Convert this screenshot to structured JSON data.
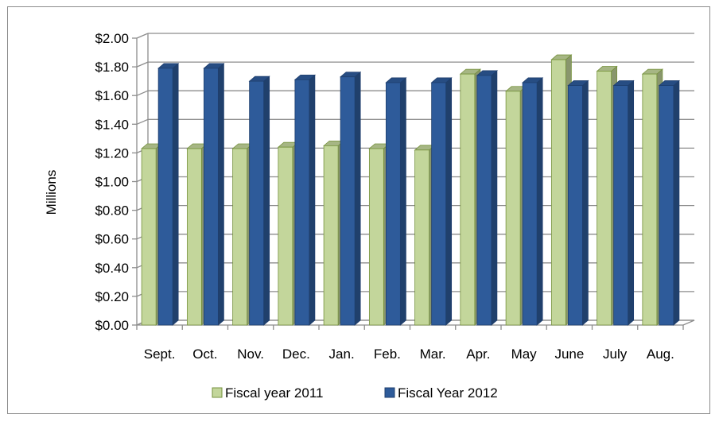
{
  "chart_data": {
    "type": "bar",
    "title": "",
    "xlabel": "",
    "ylabel": "Millions",
    "ylim": [
      0,
      2
    ],
    "y_ticks": [
      0,
      0.2,
      0.4,
      0.6,
      0.8,
      1.0,
      1.2,
      1.4,
      1.6,
      1.8,
      2.0
    ],
    "y_tick_labels": [
      "$0.00",
      "$0.20",
      "$0.40",
      "$0.60",
      "$0.80",
      "$1.00",
      "$1.20",
      "$1.40",
      "$1.60",
      "$1.80",
      "$2.00"
    ],
    "grid": true,
    "legend_position": "bottom",
    "style": "3d-clustered-column",
    "categories": [
      "Sept.",
      "Oct.",
      "Nov.",
      "Dec.",
      "Jan.",
      "Feb.",
      "Mar.",
      "Apr.",
      "May",
      "June",
      "July",
      "Aug."
    ],
    "series": [
      {
        "name": "Fiscal year 2011",
        "color": "#c3d69b",
        "values": [
          1.23,
          1.23,
          1.23,
          1.24,
          1.25,
          1.23,
          1.22,
          1.75,
          1.63,
          1.85,
          1.77,
          1.75
        ]
      },
      {
        "name": "Fiscal Year 2012",
        "color": "#2e5b9a",
        "values": [
          1.79,
          1.79,
          1.7,
          1.71,
          1.73,
          1.69,
          1.69,
          1.74,
          1.69,
          1.67,
          1.67,
          1.67
        ]
      }
    ]
  }
}
